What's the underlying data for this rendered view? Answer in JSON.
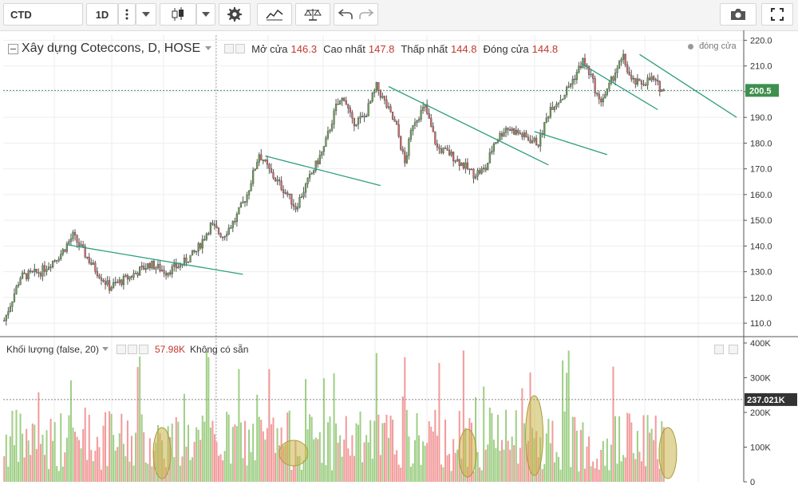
{
  "toolbar": {
    "symbol": "CTD",
    "interval": "1D",
    "icons": [
      "more-vert-icon",
      "chevron-down-icon",
      "candles-icon",
      "chevron-down-icon",
      "gear-icon",
      "indicators-icon",
      "scales-icon",
      "undo-icon",
      "redo-icon",
      "camera-icon",
      "fullscreen-icon"
    ]
  },
  "legend": {
    "title": "Xây dựng Coteccons, D, HOSE",
    "open_label": "Mở cửa",
    "open_value": "146.3",
    "high_label": "Cao nhất",
    "high_value": "147.8",
    "low_label": "Thấp nhất",
    "low_value": "144.8",
    "close_label": "Đóng cửa",
    "close_value": "144.8",
    "close_series_label": "đóng cửa"
  },
  "volume_legend": {
    "title": "Khối lượng (false, 20)",
    "value": "57.98K",
    "status": "Không có sẵn"
  },
  "colors": {
    "up": "#6aa84f",
    "down": "#e06666",
    "trendline": "#2e9e7e",
    "vol_up": "#9fcf86",
    "vol_down": "#f29b9b",
    "ellipse": "#c9b44a"
  },
  "chart_data": {
    "type": "candlestick",
    "price_axis": {
      "ticks": [
        "220.0",
        "210.0",
        "200.0",
        "190.0",
        "180.0",
        "170.0",
        "160.0",
        "150.0",
        "140.0",
        "130.0",
        "120.0",
        "110.0"
      ],
      "range": [
        106,
        222
      ]
    },
    "current_price_label": "200.5",
    "current_price": 200.5,
    "volume_axis": {
      "ticks": [
        "400K",
        "300K",
        "200K",
        "100K",
        "0"
      ],
      "range": [
        0,
        400000
      ]
    },
    "current_volume_label": "237.021K",
    "current_volume": 237021,
    "price_path": [
      [
        0,
        111
      ],
      [
        8,
        128
      ],
      [
        18,
        130
      ],
      [
        28,
        137
      ],
      [
        34,
        144
      ],
      [
        44,
        132
      ],
      [
        52,
        124
      ],
      [
        62,
        128
      ],
      [
        72,
        133
      ],
      [
        80,
        130
      ],
      [
        88,
        133
      ],
      [
        95,
        138
      ],
      [
        102,
        148
      ],
      [
        108,
        144
      ],
      [
        114,
        150
      ],
      [
        120,
        160
      ],
      [
        126,
        176
      ],
      [
        132,
        168
      ],
      [
        140,
        160
      ],
      [
        144,
        155
      ],
      [
        150,
        165
      ],
      [
        158,
        178
      ],
      [
        164,
        194
      ],
      [
        168,
        198
      ],
      [
        172,
        188
      ],
      [
        178,
        190
      ],
      [
        184,
        202
      ],
      [
        188,
        196
      ],
      [
        194,
        186
      ],
      [
        198,
        172
      ],
      [
        202,
        188
      ],
      [
        208,
        194
      ],
      [
        214,
        178
      ],
      [
        220,
        176
      ],
      [
        226,
        172
      ],
      [
        232,
        168
      ],
      [
        238,
        170
      ],
      [
        242,
        180
      ],
      [
        248,
        186
      ],
      [
        254,
        184
      ],
      [
        258,
        182
      ],
      [
        264,
        180
      ],
      [
        270,
        194
      ],
      [
        276,
        198
      ],
      [
        282,
        206
      ],
      [
        286,
        212
      ],
      [
        290,
        206
      ],
      [
        294,
        196
      ],
      [
        298,
        200
      ],
      [
        302,
        208
      ],
      [
        306,
        213
      ],
      [
        310,
        204
      ],
      [
        314,
        203
      ],
      [
        320,
        205
      ],
      [
        326,
        200
      ]
    ],
    "trendlines": [
      {
        "p1": [
          31,
          140.5
        ],
        "p2": [
          118,
          129
        ]
      },
      {
        "p1": [
          129,
          175
        ],
        "p2": [
          186,
          163.5
        ]
      },
      {
        "p1": [
          190,
          202
        ],
        "p2": [
          269,
          171.5
        ]
      },
      {
        "p1": [
          262,
          184.5
        ],
        "p2": [
          298,
          175.5
        ]
      },
      {
        "p1": [
          285,
          211
        ],
        "p2": [
          323,
          193
        ]
      },
      {
        "p1": [
          314,
          214.5
        ],
        "p2": [
          362,
          190
        ]
      }
    ],
    "volume_highlights": [
      78,
      143,
      229,
      262,
      328
    ]
  }
}
